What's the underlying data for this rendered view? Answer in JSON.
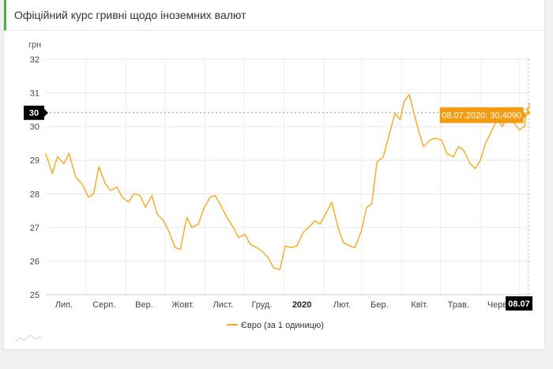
{
  "header": {
    "title": "Офіційний курс гривні щодо іноземних валют"
  },
  "chart_data": {
    "type": "line",
    "title": "",
    "ylabel": "грн",
    "xlabel": "",
    "ylim": [
      25,
      32
    ],
    "yticks": [
      25,
      26,
      27,
      28,
      29,
      30,
      31,
      32
    ],
    "x_range": [
      "2019-07-01",
      "2020-07-10"
    ],
    "x_tick_labels": [
      {
        "date": "2019-07-15",
        "label": "Лип.",
        "bold": false
      },
      {
        "date": "2019-08-15",
        "label": "Серп.",
        "bold": false
      },
      {
        "date": "2019-09-15",
        "label": "Вер.",
        "bold": false
      },
      {
        "date": "2019-10-15",
        "label": "Жовт.",
        "bold": false
      },
      {
        "date": "2019-11-15",
        "label": "Лист.",
        "bold": false
      },
      {
        "date": "2019-12-15",
        "label": "Груд.",
        "bold": false
      },
      {
        "date": "2020-01-15",
        "label": "2020",
        "bold": true
      },
      {
        "date": "2020-02-15",
        "label": "Лют.",
        "bold": false
      },
      {
        "date": "2020-03-15",
        "label": "Бер.",
        "bold": false
      },
      {
        "date": "2020-04-15",
        "label": "Квіт.",
        "bold": false
      },
      {
        "date": "2020-05-15",
        "label": "Трав.",
        "bold": false
      },
      {
        "date": "2020-06-15",
        "label": "Черв.",
        "bold": false
      }
    ],
    "grid": true,
    "legend": "bottom-center",
    "series": [
      {
        "name": "Євро (за 1 одиницю)",
        "color": "#f7a81b",
        "points": [
          [
            "2019-07-01",
            29.2
          ],
          [
            "2019-07-06",
            28.6
          ],
          [
            "2019-07-10",
            29.1
          ],
          [
            "2019-07-15",
            28.9
          ],
          [
            "2019-07-19",
            29.2
          ],
          [
            "2019-07-24",
            28.5
          ],
          [
            "2019-07-29",
            28.3
          ],
          [
            "2019-08-03",
            27.9
          ],
          [
            "2019-08-07",
            28.0
          ],
          [
            "2019-08-11",
            28.8
          ],
          [
            "2019-08-16",
            28.3
          ],
          [
            "2019-08-20",
            28.1
          ],
          [
            "2019-08-25",
            28.2
          ],
          [
            "2019-08-29",
            27.9
          ],
          [
            "2019-09-03",
            27.75
          ],
          [
            "2019-09-07",
            28.0
          ],
          [
            "2019-09-12",
            27.95
          ],
          [
            "2019-09-16",
            27.6
          ],
          [
            "2019-09-21",
            27.95
          ],
          [
            "2019-09-25",
            27.4
          ],
          [
            "2019-09-30",
            27.2
          ],
          [
            "2019-10-04",
            26.9
          ],
          [
            "2019-10-09",
            26.4
          ],
          [
            "2019-10-13",
            26.35
          ],
          [
            "2019-10-18",
            27.3
          ],
          [
            "2019-10-22",
            27.0
          ],
          [
            "2019-10-27",
            27.1
          ],
          [
            "2019-10-31",
            27.55
          ],
          [
            "2019-11-05",
            27.9
          ],
          [
            "2019-11-09",
            27.95
          ],
          [
            "2019-11-14",
            27.6
          ],
          [
            "2019-11-18",
            27.3
          ],
          [
            "2019-11-23",
            27.0
          ],
          [
            "2019-11-27",
            26.7
          ],
          [
            "2019-12-02",
            26.8
          ],
          [
            "2019-12-06",
            26.5
          ],
          [
            "2019-12-11",
            26.4
          ],
          [
            "2019-12-15",
            26.3
          ],
          [
            "2019-12-20",
            26.1
          ],
          [
            "2019-12-24",
            25.8
          ],
          [
            "2019-12-29",
            25.75
          ],
          [
            "2020-01-02",
            26.45
          ],
          [
            "2020-01-07",
            26.4
          ],
          [
            "2020-01-11",
            26.45
          ],
          [
            "2020-01-16",
            26.85
          ],
          [
            "2020-01-20",
            27.0
          ],
          [
            "2020-01-25",
            27.2
          ],
          [
            "2020-01-29",
            27.1
          ],
          [
            "2020-02-03",
            27.45
          ],
          [
            "2020-02-07",
            27.75
          ],
          [
            "2020-02-12",
            27.0
          ],
          [
            "2020-02-16",
            26.55
          ],
          [
            "2020-02-21",
            26.45
          ],
          [
            "2020-02-25",
            26.4
          ],
          [
            "2020-03-01",
            26.9
          ],
          [
            "2020-03-05",
            27.6
          ],
          [
            "2020-03-09",
            27.7
          ],
          [
            "2020-03-13",
            28.95
          ],
          [
            "2020-03-18",
            29.1
          ],
          [
            "2020-03-22",
            29.7
          ],
          [
            "2020-03-27",
            30.4
          ],
          [
            "2020-03-31",
            30.2
          ],
          [
            "2020-04-03",
            30.75
          ],
          [
            "2020-04-07",
            30.95
          ],
          [
            "2020-04-10",
            30.5
          ],
          [
            "2020-04-14",
            29.9
          ],
          [
            "2020-04-18",
            29.4
          ],
          [
            "2020-04-23",
            29.6
          ],
          [
            "2020-04-27",
            29.65
          ],
          [
            "2020-05-02",
            29.6
          ],
          [
            "2020-05-06",
            29.2
          ],
          [
            "2020-05-11",
            29.1
          ],
          [
            "2020-05-15",
            29.4
          ],
          [
            "2020-05-19",
            29.3
          ],
          [
            "2020-05-24",
            28.9
          ],
          [
            "2020-05-28",
            28.75
          ],
          [
            "2020-06-01",
            29.0
          ],
          [
            "2020-06-05",
            29.5
          ],
          [
            "2020-06-10",
            29.9
          ],
          [
            "2020-06-14",
            30.2
          ],
          [
            "2020-06-18",
            30.0
          ],
          [
            "2020-06-23",
            30.4
          ],
          [
            "2020-06-27",
            30.1
          ],
          [
            "2020-07-01",
            29.9
          ],
          [
            "2020-07-05",
            30.0
          ],
          [
            "2020-07-07",
            30.55
          ],
          [
            "2020-07-08",
            30.409
          ],
          [
            "2020-07-09",
            30.7
          ]
        ]
      }
    ],
    "tooltip": {
      "text": "08.07.2020: 30,4090",
      "date": "2020-07-08",
      "value": 30.409
    },
    "crosshair_y_label": "30",
    "crosshair_x_label": "08.07"
  },
  "colors": {
    "series": "#f7a81b",
    "tooltip_bg": "#f39c12",
    "badge_bg": "#000000",
    "grid": "#e6e6e6",
    "header_accent": "#4caf50"
  }
}
